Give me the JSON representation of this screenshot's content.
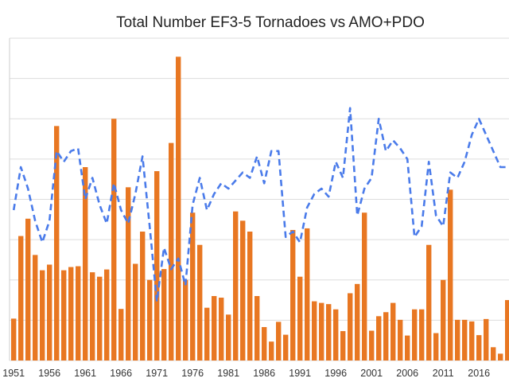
{
  "chart_data": {
    "type": "bar",
    "title": "Total Number EF3-5 Tornadoes vs AMO+PDO",
    "xlabel": "",
    "ylabel": "",
    "colors": {
      "bars": "#E87722",
      "line": "#4A7BEA",
      "grid": "#dddddd"
    },
    "ylim": [
      0,
      80
    ],
    "y2lim": [
      -3,
      3
    ],
    "grid": true,
    "x_tick_labels": [
      "1951",
      "1956",
      "1961",
      "1966",
      "1971",
      "1976",
      "1981",
      "1986",
      "1991",
      "1996",
      "2001",
      "2006",
      "2011",
      "2016"
    ],
    "categories": [
      1951,
      1952,
      1953,
      1954,
      1955,
      1956,
      1957,
      1958,
      1959,
      1960,
      1961,
      1962,
      1963,
      1964,
      1965,
      1966,
      1967,
      1968,
      1969,
      1970,
      1971,
      1972,
      1973,
      1974,
      1975,
      1976,
      1977,
      1978,
      1979,
      1980,
      1981,
      1982,
      1983,
      1984,
      1985,
      1986,
      1987,
      1988,
      1989,
      1990,
      1991,
      1992,
      1993,
      1994,
      1995,
      1996,
      1997,
      1998,
      1999,
      2000,
      2001,
      2002,
      2003,
      2004,
      2005,
      2006,
      2007,
      2008,
      2009,
      2010,
      2011,
      2012,
      2013,
      2014,
      2015,
      2016,
      2017,
      2018,
      2019,
      2020
    ],
    "series": [
      {
        "type": "bar",
        "values": [
          10.4,
          30.9,
          35.2,
          26.2,
          22.4,
          23.8,
          58.2,
          22.4,
          23.2,
          23.4,
          48,
          21.9,
          20.8,
          22.6,
          60,
          12.8,
          43,
          24,
          32,
          20,
          47,
          22.7,
          54,
          75.4,
          20,
          36.7,
          28.7,
          13.1,
          16,
          15.6,
          11.4,
          37,
          34.7,
          32,
          16,
          8.3,
          4.7,
          9.6,
          6.4,
          32.4,
          20.8,
          32.8,
          14.7,
          14.3,
          14,
          12.7,
          7.3,
          16.7,
          19,
          36.7,
          7.4,
          11,
          12,
          14.3,
          10.1,
          6.2,
          12.7,
          12.7,
          28.7,
          6.8,
          20,
          42.4,
          10.1,
          10.1,
          9.7,
          6.3,
          10.3,
          3.3,
          1.7,
          15
        ]
      },
      {
        "type": "line",
        "values": [
          -0.2,
          0.6,
          0.2,
          -0.4,
          -0.8,
          -0.4,
          0.9,
          0.7,
          0.9,
          0.95,
          0,
          0.4,
          -0.1,
          -0.45,
          0.3,
          -0.2,
          -0.45,
          0.1,
          0.8,
          -0.5,
          -1.9,
          -0.9,
          -1.3,
          -1.1,
          -1.6,
          -0.1,
          0.4,
          -0.2,
          0.1,
          0.3,
          0.2,
          0.35,
          0.5,
          0.4,
          0.8,
          0.3,
          0.9,
          0.9,
          -0.7,
          -0.6,
          -0.8,
          -0.15,
          0.1,
          0.2,
          0.05,
          0.7,
          0.4,
          1.7,
          -0.3,
          0.2,
          0.4,
          1.5,
          0.9,
          1.1,
          0.95,
          0.75,
          -0.7,
          -0.5,
          0.7,
          -0.3,
          -0.5,
          0.5,
          0.4,
          0.7,
          1.2,
          1.5,
          1.2,
          0.9,
          0.6,
          0.6
        ]
      }
    ]
  }
}
